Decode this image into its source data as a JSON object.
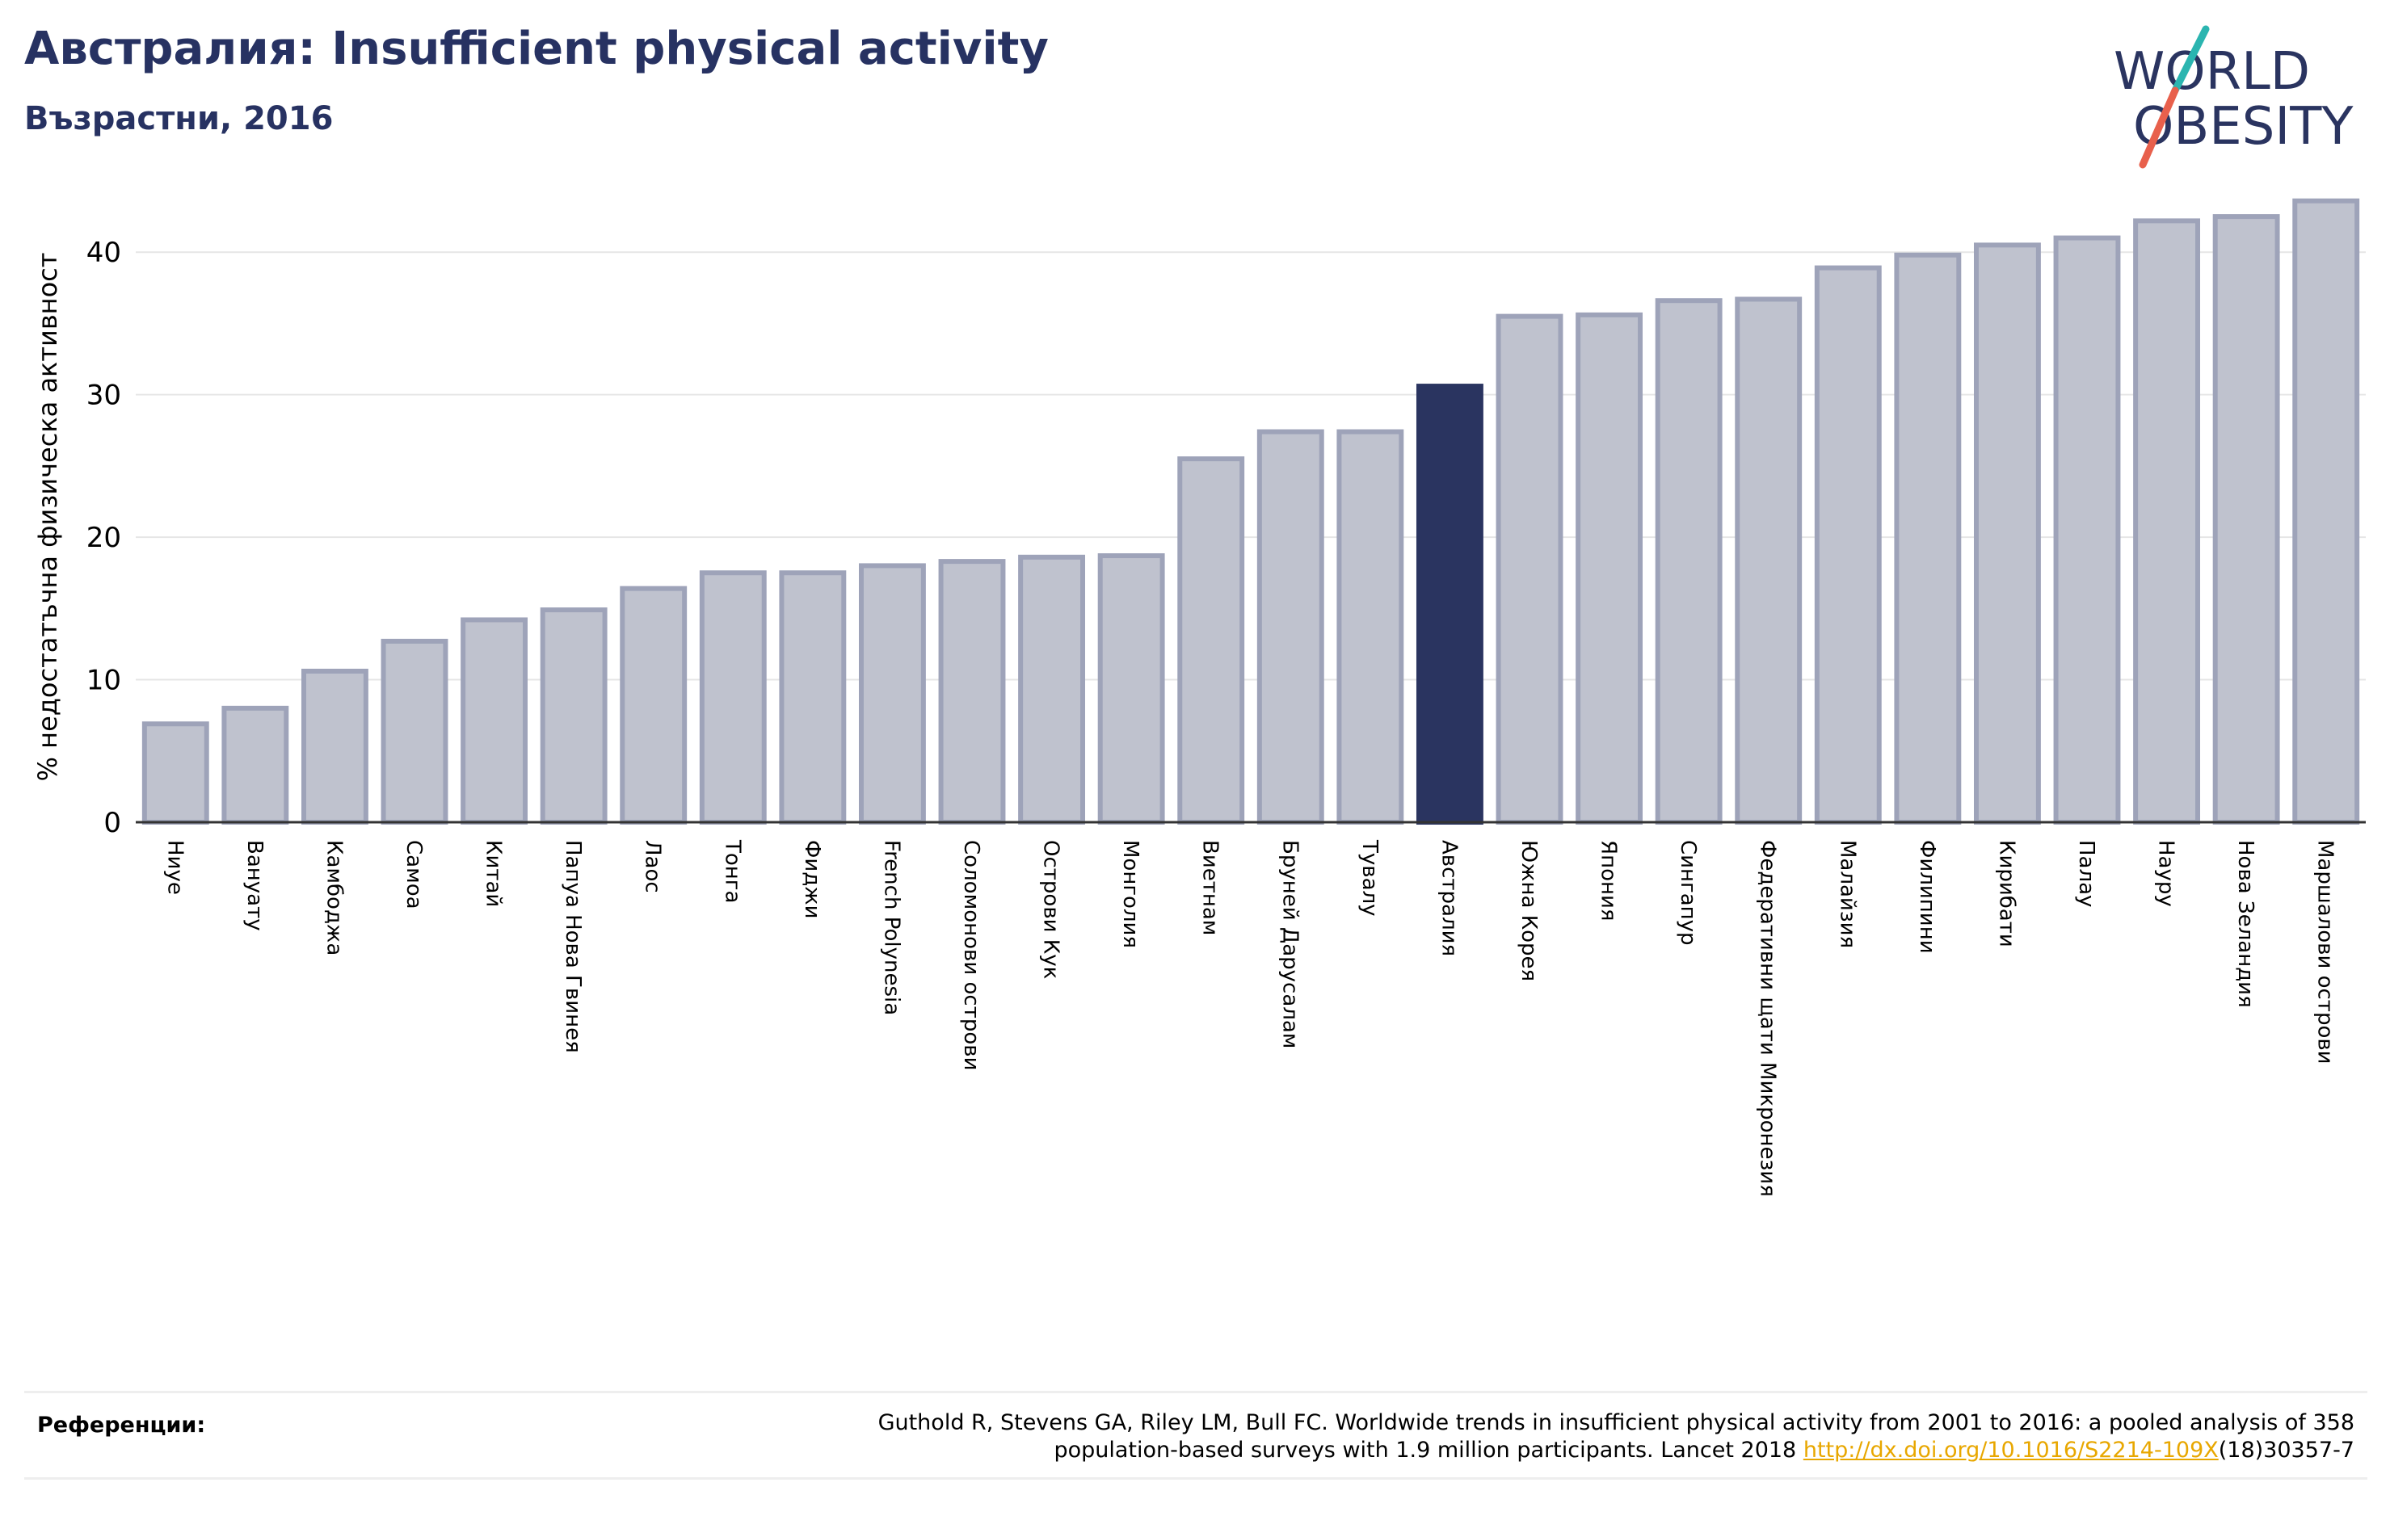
{
  "header": {
    "title": "Австралия: Insufficient physical activity",
    "subtitle": "Възрастни, 2016"
  },
  "logo": {
    "line1": "WORLD",
    "line2": "OBESITY",
    "colors": {
      "text": "#2a3460",
      "slash_top": "#2bb5b0",
      "slash_bottom": "#e8604c"
    }
  },
  "colors": {
    "bar": "#bfc2ce",
    "bar_border": "#9ea3b9",
    "highlight": "#2a3460",
    "axis": "#333333",
    "grid": "#e6e6e6"
  },
  "chart_data": {
    "type": "bar",
    "ylabel": "% недостатъчна физическа активност",
    "ylim": [
      0,
      45
    ],
    "yticks": [
      0,
      10,
      20,
      30,
      40
    ],
    "grid": true,
    "highlight": "Австралия",
    "categories": [
      "Ниуе",
      "Вануату",
      "Камбоджа",
      "Самоа",
      "Китай",
      "Папуа Нова Гвинея",
      "Лаос",
      "Тонга",
      "Фиджи",
      "French Polynesia",
      "Соломонови острови",
      "Острови Кук",
      "Монголия",
      "Виетнам",
      "Бруней Дарусалам",
      "Тувалу",
      "Австралия",
      "Южна Корея",
      "Япония",
      "Сингапур",
      "Федеративни щати Микронезия",
      "Малайзия",
      "Филипини",
      "Кирибати",
      "Палау",
      "Науру",
      "Нова Зеландия",
      "Маршалови острови"
    ],
    "values": [
      6.9,
      8.0,
      10.6,
      12.7,
      14.2,
      14.9,
      16.4,
      17.5,
      17.5,
      18.0,
      18.3,
      18.6,
      18.7,
      25.5,
      27.4,
      27.4,
      30.6,
      35.5,
      35.6,
      36.6,
      36.7,
      38.9,
      39.8,
      40.5,
      41.0,
      42.2,
      42.5,
      43.6
    ]
  },
  "references": {
    "label": "Референции:",
    "text_line1": "Guthold R, Stevens GA, Riley LM, Bull FC. Worldwide trends in insufficient physical activity from 2001 to 2016: a pooled analysis of 358",
    "text_line2_before": "population-based surveys with 1.9 million participants. Lancet 2018 ",
    "link": "http://dx.doi.org/10.1016/S2214-109X",
    "text_line2_after": "(18)30357-7"
  }
}
